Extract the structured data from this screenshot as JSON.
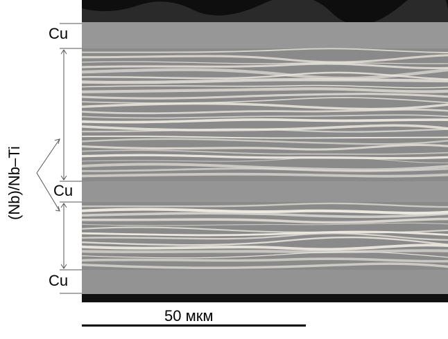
{
  "labels": {
    "cu_top": "Cu",
    "cu_middle": "Cu",
    "cu_bottom": "Cu",
    "filament_layer": "(Nb)/Nb–Ti"
  },
  "scale_bar": {
    "label": "50 мкм"
  },
  "colors": {
    "copper_matrix": "#8f8f8f",
    "filaments": "#ece9e0",
    "background_dark": "#111111"
  }
}
